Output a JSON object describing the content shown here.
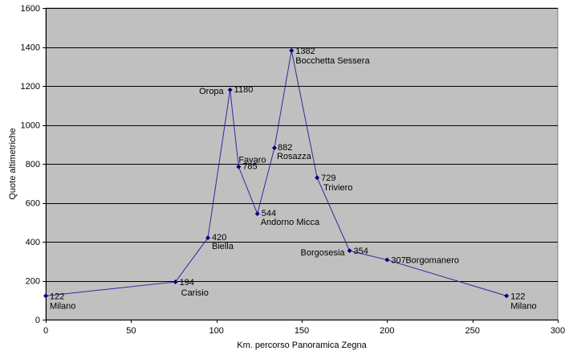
{
  "chart_data": {
    "type": "line",
    "title": "",
    "xlabel": "Km. percorso Panoramica Zegna",
    "ylabel": "Quote altimetriche",
    "xlim": [
      0,
      300
    ],
    "ylim": [
      0,
      1600
    ],
    "x_ticks": [
      0,
      50,
      100,
      150,
      200,
      250,
      300
    ],
    "y_ticks": [
      0,
      200,
      400,
      600,
      800,
      1000,
      1200,
      1400,
      1600
    ],
    "grid": "horizontal",
    "legend": "none",
    "plot_background": "#c0c0c0",
    "line_color": "#2b2b9a",
    "marker_color": "#000080",
    "points": [
      {
        "x": 0,
        "y": 122,
        "value_label": "122",
        "name": "Milano"
      },
      {
        "x": 76,
        "y": 194,
        "value_label": "194",
        "name": "Carisio"
      },
      {
        "x": 95,
        "y": 420,
        "value_label": "420",
        "name": "Biella"
      },
      {
        "x": 108,
        "y": 1180,
        "value_label": "1180",
        "name": "Oropa"
      },
      {
        "x": 113,
        "y": 785,
        "value_label": "785",
        "name": "Favaro"
      },
      {
        "x": 124,
        "y": 544,
        "value_label": "544",
        "name": "Andorno Micca"
      },
      {
        "x": 134,
        "y": 882,
        "value_label": "882",
        "name": "Rosazza"
      },
      {
        "x": 144,
        "y": 1382,
        "value_label": "1382",
        "name": "Bocchetta Sessera"
      },
      {
        "x": 159,
        "y": 729,
        "value_label": "729",
        "name": "Triviero"
      },
      {
        "x": 178,
        "y": 354,
        "value_label": "354",
        "name": "Borgosesia"
      },
      {
        "x": 200,
        "y": 307,
        "value_label": "307",
        "name": "Borgomanero"
      },
      {
        "x": 270,
        "y": 122,
        "value_label": "122",
        "name": "Milano"
      }
    ]
  }
}
